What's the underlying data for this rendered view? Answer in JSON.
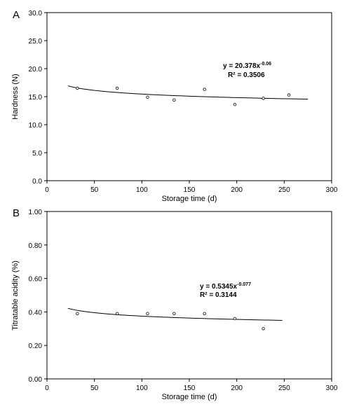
{
  "chart_data": [
    {
      "type": "scatter",
      "panel_label": "A",
      "xlabel": "Storage time (d)",
      "ylabel": "Hardness (N)",
      "xlim": [
        0,
        300
      ],
      "ylim": [
        0,
        30
      ],
      "x_ticks": [
        "0",
        "50",
        "100",
        "150",
        "200",
        "250",
        "300"
      ],
      "y_ticks": [
        "0.0",
        "5.0",
        "10.0",
        "15.0",
        "20.0",
        "25.0",
        "30.0"
      ],
      "series": [
        {
          "points": [
            {
              "x": 32,
              "y": 16.5
            },
            {
              "x": 74,
              "y": 16.5
            },
            {
              "x": 106,
              "y": 14.9
            },
            {
              "x": 134,
              "y": 14.4
            },
            {
              "x": 166,
              "y": 16.3
            },
            {
              "x": 198,
              "y": 13.6
            },
            {
              "x": 228,
              "y": 14.7
            },
            {
              "x": 255,
              "y": 15.3
            }
          ]
        }
      ],
      "trendline": {
        "type": "power",
        "a": 20.378,
        "b": -0.06,
        "x_range": [
          22,
          275
        ]
      },
      "equation": {
        "base": "y = 20.378x",
        "exp": "-0.06"
      },
      "r2": "R² = 0.3506",
      "grid": false,
      "legend": "none"
    },
    {
      "type": "scatter",
      "panel_label": "B",
      "xlabel": "Storage time (d)",
      "ylabel": "Titratable acidity (%)",
      "xlim": [
        0,
        300
      ],
      "ylim": [
        0,
        1
      ],
      "x_ticks": [
        "0",
        "50",
        "100",
        "150",
        "200",
        "250",
        "300"
      ],
      "y_ticks": [
        "0.00",
        "0.20",
        "0.40",
        "0.60",
        "0.80",
        "1.00"
      ],
      "series": [
        {
          "points": [
            {
              "x": 32,
              "y": 0.39
            },
            {
              "x": 74,
              "y": 0.39
            },
            {
              "x": 106,
              "y": 0.39
            },
            {
              "x": 134,
              "y": 0.39
            },
            {
              "x": 166,
              "y": 0.39
            },
            {
              "x": 198,
              "y": 0.36
            },
            {
              "x": 228,
              "y": 0.3
            }
          ]
        }
      ],
      "trendline": {
        "type": "power",
        "a": 0.5345,
        "b": -0.077,
        "x_range": [
          22,
          248
        ]
      },
      "equation": {
        "base": "y = 0.5345x",
        "exp": "-0.077"
      },
      "r2": "R² = 0.3144",
      "grid": false,
      "legend": "none"
    }
  ]
}
